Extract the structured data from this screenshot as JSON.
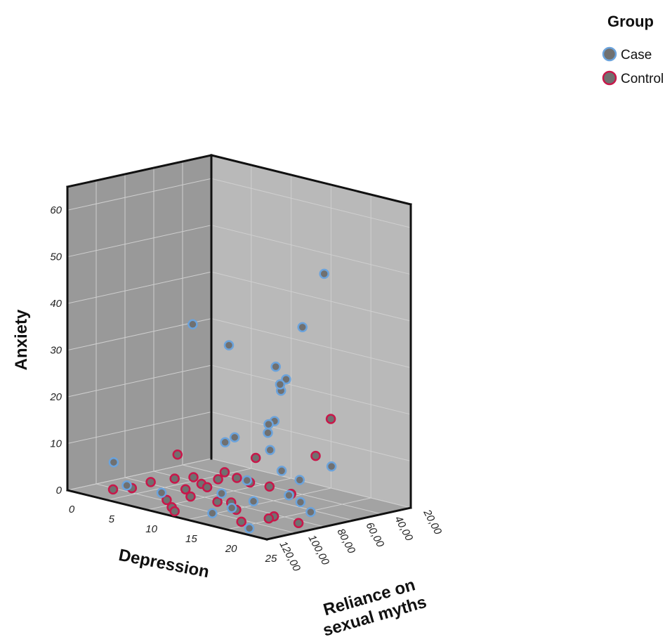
{
  "chart_data": {
    "type": "scatter",
    "dimensions": 3,
    "xlabel": "Depression",
    "ylabel": "Reliance on sexual myths",
    "zlabel": "Anxiety",
    "xlim": [
      0,
      25
    ],
    "ylim": [
      20,
      120
    ],
    "zlim": [
      0,
      65
    ],
    "xticks": [
      "0",
      "5",
      "10",
      "15",
      "20",
      "25"
    ],
    "yticks": [
      "20,00",
      "40,00",
      "60,00",
      "80,00",
      "100,00",
      "120,00"
    ],
    "zticks": [
      "0",
      "10",
      "20",
      "30",
      "40",
      "50",
      "60"
    ],
    "grid": true,
    "legend": {
      "title": "Group",
      "position": "top-right",
      "entries": [
        {
          "label": "Case",
          "fill": "#707070",
          "stroke": "#6ba3dc"
        },
        {
          "label": "Control",
          "fill": "#707070",
          "stroke": "#c8174a"
        }
      ]
    },
    "series": [
      {
        "name": "Case",
        "points": [
          {
            "x": 13,
            "y": 105,
            "z": 40
          },
          {
            "x": 17,
            "y": 102,
            "z": 37
          },
          {
            "x": 21,
            "y": 58,
            "z": 51
          },
          {
            "x": 19,
            "y": 62,
            "z": 39
          },
          {
            "x": 18,
            "y": 75,
            "z": 31
          },
          {
            "x": 22,
            "y": 90,
            "z": 31
          },
          {
            "x": 18,
            "y": 72,
            "z": 27
          },
          {
            "x": 21,
            "y": 88,
            "z": 28
          },
          {
            "x": 20,
            "y": 87,
            "z": 21
          },
          {
            "x": 18,
            "y": 80,
            "z": 19
          },
          {
            "x": 19,
            "y": 86,
            "z": 18
          },
          {
            "x": 17,
            "y": 98,
            "z": 17
          },
          {
            "x": 20,
            "y": 90,
            "z": 15
          },
          {
            "x": 14,
            "y": 88,
            "z": 14
          },
          {
            "x": 23,
            "y": 64,
            "z": 11
          },
          {
            "x": 21,
            "y": 75,
            "z": 8
          },
          {
            "x": 20,
            "y": 82,
            "z": 10
          },
          {
            "x": 18,
            "y": 95,
            "z": 8
          },
          {
            "x": 4,
            "y": 110,
            "z": 7
          },
          {
            "x": 6,
            "y": 112,
            "z": 3
          },
          {
            "x": 10,
            "y": 110,
            "z": 3
          },
          {
            "x": 15,
            "y": 96,
            "z": 4
          },
          {
            "x": 17,
            "y": 100,
            "z": 2
          },
          {
            "x": 19,
            "y": 96,
            "z": 4
          },
          {
            "x": 22,
            "y": 88,
            "z": 6
          },
          {
            "x": 22,
            "y": 80,
            "z": 4
          },
          {
            "x": 24,
            "y": 84,
            "z": 3
          },
          {
            "x": 16,
            "y": 108,
            "z": 1
          },
          {
            "x": 21,
            "y": 110,
            "z": 0
          }
        ]
      },
      {
        "name": "Control",
        "points": [
          {
            "x": 24,
            "y": 70,
            "z": 22
          },
          {
            "x": 23,
            "y": 75,
            "z": 14
          },
          {
            "x": 20,
            "y": 100,
            "z": 14
          },
          {
            "x": 12,
            "y": 110,
            "z": 12
          },
          {
            "x": 17,
            "y": 105,
            "z": 10
          },
          {
            "x": 18,
            "y": 102,
            "z": 9
          },
          {
            "x": 20,
            "y": 104,
            "z": 9
          },
          {
            "x": 21,
            "y": 96,
            "z": 8
          },
          {
            "x": 23,
            "y": 92,
            "z": 7
          },
          {
            "x": 15,
            "y": 110,
            "z": 7
          },
          {
            "x": 14,
            "y": 110,
            "z": 8
          },
          {
            "x": 12,
            "y": 112,
            "z": 7
          },
          {
            "x": 16,
            "y": 104,
            "z": 8
          },
          {
            "x": 15,
            "y": 106,
            "z": 6
          },
          {
            "x": 9,
            "y": 112,
            "z": 5
          },
          {
            "x": 13,
            "y": 110,
            "z": 5
          },
          {
            "x": 14,
            "y": 112,
            "z": 4
          },
          {
            "x": 17,
            "y": 110,
            "z": 4
          },
          {
            "x": 18,
            "y": 106,
            "z": 4
          },
          {
            "x": 19,
            "y": 108,
            "z": 3
          },
          {
            "x": 7,
            "y": 114,
            "z": 3
          },
          {
            "x": 11,
            "y": 112,
            "z": 2
          },
          {
            "x": 12,
            "y": 114,
            "z": 1
          },
          {
            "x": 12,
            "y": 112,
            "z": 0
          },
          {
            "x": 22,
            "y": 102,
            "z": 2
          },
          {
            "x": 23,
            "y": 104,
            "z": 3
          },
          {
            "x": 20,
            "y": 110,
            "z": 1
          },
          {
            "x": 5,
            "y": 116,
            "z": 2
          },
          {
            "x": 25,
            "y": 98,
            "z": 2
          }
        ]
      }
    ]
  }
}
